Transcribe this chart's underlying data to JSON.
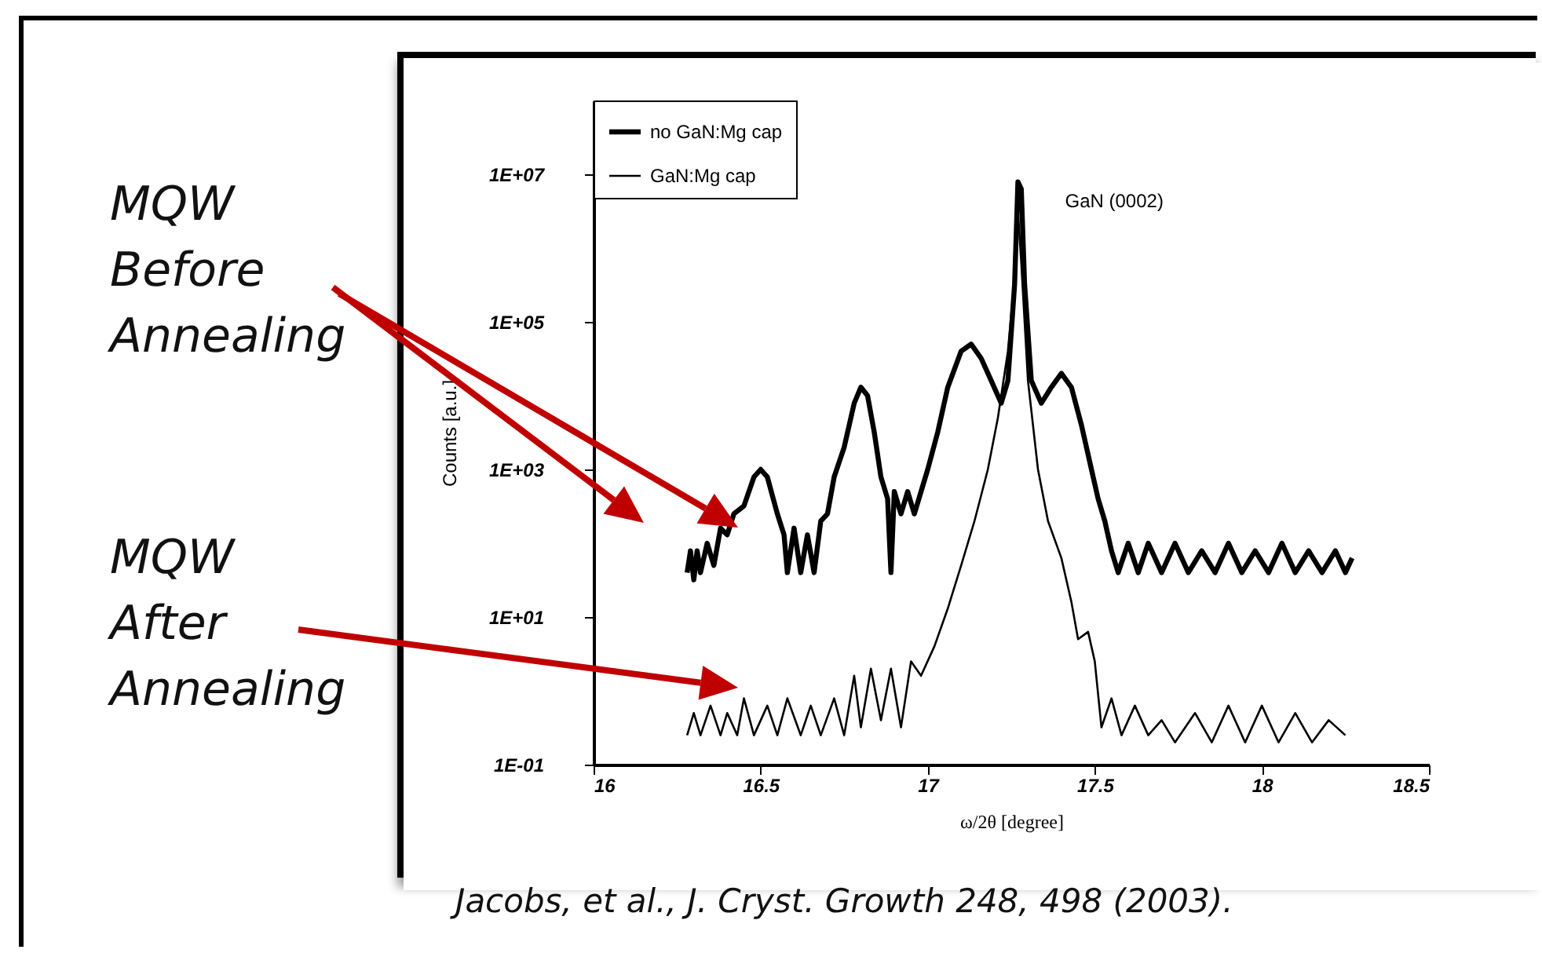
{
  "chart_data": {
    "type": "line",
    "xlabel": "ω/2θ [degree]",
    "ylabel": "Counts [a.u.]",
    "log": "y",
    "xlim": [
      16,
      18.5
    ],
    "xticks": [
      16,
      16.5,
      17,
      17.5,
      18,
      18.5
    ],
    "ylim": [
      0.1,
      100000000
    ],
    "yticks": [
      {
        "value": 0.1,
        "label": "1E-01"
      },
      {
        "value": 10,
        "label": "1E+01"
      },
      {
        "value": 1000,
        "label": "1E+03"
      },
      {
        "value": 100000,
        "label": "1E+05"
      },
      {
        "value": 10000000,
        "label": "1E+07"
      }
    ],
    "grid": false,
    "legend": "top left",
    "marker": "none",
    "line_style": "solid",
    "annotations": [
      "MQW Before Annealing",
      "MQW After Annealing",
      {
        "text": "GaN (0002)",
        "x": 17.27,
        "y": 7900000
      },
      "Jacobs, et al., J. Cryst. Growth 248, 498 (2003)."
    ],
    "series": [
      {
        "name": "no GaN:Mg cap",
        "color": "#000000",
        "x": [
          16.28,
          16.29,
          16.3,
          16.31,
          16.32,
          16.34,
          16.36,
          16.38,
          16.4,
          16.42,
          16.45,
          16.48,
          16.5,
          16.52,
          16.55,
          16.57,
          16.58,
          16.6,
          16.62,
          16.64,
          16.66,
          16.68,
          16.7,
          16.72,
          16.75,
          16.78,
          16.8,
          16.82,
          16.84,
          16.86,
          16.88,
          16.89,
          16.9,
          16.92,
          16.94,
          16.96,
          16.98,
          17,
          17.03,
          17.06,
          17.1,
          17.13,
          17.16,
          17.19,
          17.22,
          17.24,
          17.26,
          17.27,
          17.28,
          17.29,
          17.31,
          17.34,
          17.37,
          17.4,
          17.43,
          17.46,
          17.49,
          17.51,
          17.53,
          17.55,
          17.57,
          17.6,
          17.63,
          17.66,
          17.7,
          17.74,
          17.78,
          17.82,
          17.86,
          17.9,
          17.94,
          17.98,
          18.02,
          18.06,
          18.1,
          18.14,
          18.18,
          18.22,
          18.25,
          18.27
        ],
        "values": [
          40,
          79,
          32,
          79,
          40,
          100,
          50,
          160,
          130,
          250,
          320,
          790,
          1000,
          790,
          250,
          130,
          40,
          160,
          40,
          130,
          40,
          200,
          250,
          790,
          2000,
          7900,
          13000,
          10000,
          3200,
          790,
          400,
          40,
          500,
          250,
          500,
          250,
          500,
          1000,
          3200,
          13000,
          40000,
          50000,
          32000,
          16000,
          7900,
          16000,
          320000,
          7900000,
          6300000,
          320000,
          16000,
          7900,
          13000,
          20000,
          13000,
          4000,
          1000,
          400,
          200,
          79,
          40,
          100,
          40,
          100,
          40,
          100,
          40,
          79,
          40,
          100,
          40,
          79,
          40,
          100,
          40,
          79,
          40,
          79,
          40,
          63
        ]
      },
      {
        "name": "GaN:Mg cap",
        "color": "#000000",
        "x": [
          16.28,
          16.3,
          16.32,
          16.35,
          16.38,
          16.4,
          16.43,
          16.45,
          16.48,
          16.52,
          16.55,
          16.58,
          16.62,
          16.65,
          16.68,
          16.72,
          16.75,
          16.78,
          16.8,
          16.83,
          16.86,
          16.89,
          16.92,
          16.95,
          16.98,
          17.02,
          17.06,
          17.1,
          17.14,
          17.18,
          17.21,
          17.24,
          17.26,
          17.27,
          17.28,
          17.3,
          17.33,
          17.36,
          17.4,
          17.43,
          17.45,
          17.48,
          17.5,
          17.52,
          17.55,
          17.58,
          17.62,
          17.66,
          17.7,
          17.74,
          17.8,
          17.85,
          17.9,
          17.95,
          18,
          18.05,
          18.1,
          18.15,
          18.2,
          18.25
        ],
        "values": [
          0.25,
          0.5,
          0.25,
          0.63,
          0.25,
          0.5,
          0.25,
          0.79,
          0.25,
          0.63,
          0.25,
          0.79,
          0.25,
          0.63,
          0.25,
          0.79,
          0.25,
          1.6,
          0.32,
          2,
          0.4,
          2,
          0.32,
          2.5,
          1.6,
          4,
          13,
          50,
          200,
          1000,
          5000,
          40000,
          400000,
          3200000,
          630000,
          16000,
          1000,
          200,
          63,
          16,
          5,
          6.3,
          2.5,
          0.32,
          0.79,
          0.25,
          0.63,
          0.25,
          0.4,
          0.2,
          0.5,
          0.2,
          0.63,
          0.2,
          0.63,
          0.2,
          0.5,
          0.2,
          0.4,
          0.25
        ]
      }
    ]
  }
}
